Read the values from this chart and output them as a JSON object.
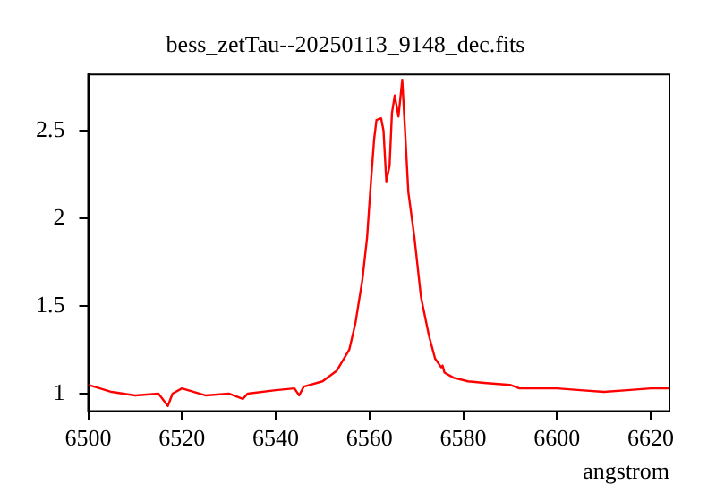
{
  "chart_data": {
    "type": "line",
    "title": "bess_zetTau--20250113_9148_dec.fits",
    "xlabel": "angstrom",
    "x": [
      6500,
      6505,
      6510,
      6515,
      6517,
      6518,
      6520,
      6525,
      6530,
      6533,
      6534,
      6540,
      6544,
      6545,
      6546,
      6550,
      6553,
      6555.7,
      6557,
      6558.5,
      6559.5,
      6560.3,
      6561,
      6561.5,
      6562.5,
      6563,
      6563.6,
      6564.3,
      6564.8,
      6565.4,
      6566.2,
      6567,
      6567.6,
      6568.3,
      6569.6,
      6571,
      6572.7,
      6574,
      6575.3,
      6575.6,
      6576,
      6578,
      6581,
      6585,
      6590,
      6592,
      6600,
      6605,
      6610,
      6615,
      6620,
      6624
    ],
    "series": [
      {
        "color": "#ff0000",
        "values": [
          1.05,
          1.01,
          0.99,
          1.0,
          0.93,
          1.0,
          1.03,
          0.99,
          1.0,
          0.97,
          1.0,
          1.02,
          1.03,
          0.99,
          1.04,
          1.07,
          1.13,
          1.25,
          1.4,
          1.65,
          1.89,
          2.2,
          2.45,
          2.56,
          2.57,
          2.5,
          2.21,
          2.3,
          2.6,
          2.7,
          2.58,
          2.79,
          2.5,
          2.15,
          1.89,
          1.55,
          1.33,
          1.2,
          1.15,
          1.16,
          1.12,
          1.09,
          1.07,
          1.06,
          1.05,
          1.03,
          1.03,
          1.02,
          1.01,
          1.02,
          1.03,
          1.03
        ]
      }
    ],
    "xlim": [
      6500,
      6624
    ],
    "xticks": [
      6500,
      6520,
      6540,
      6560,
      6580,
      6600,
      6620
    ],
    "ylim": [
      0.9,
      2.82
    ],
    "yticks": [
      1,
      1.5,
      2,
      2.5
    ],
    "grid": false,
    "legend": false,
    "marker": "none",
    "line_style": "solid"
  }
}
